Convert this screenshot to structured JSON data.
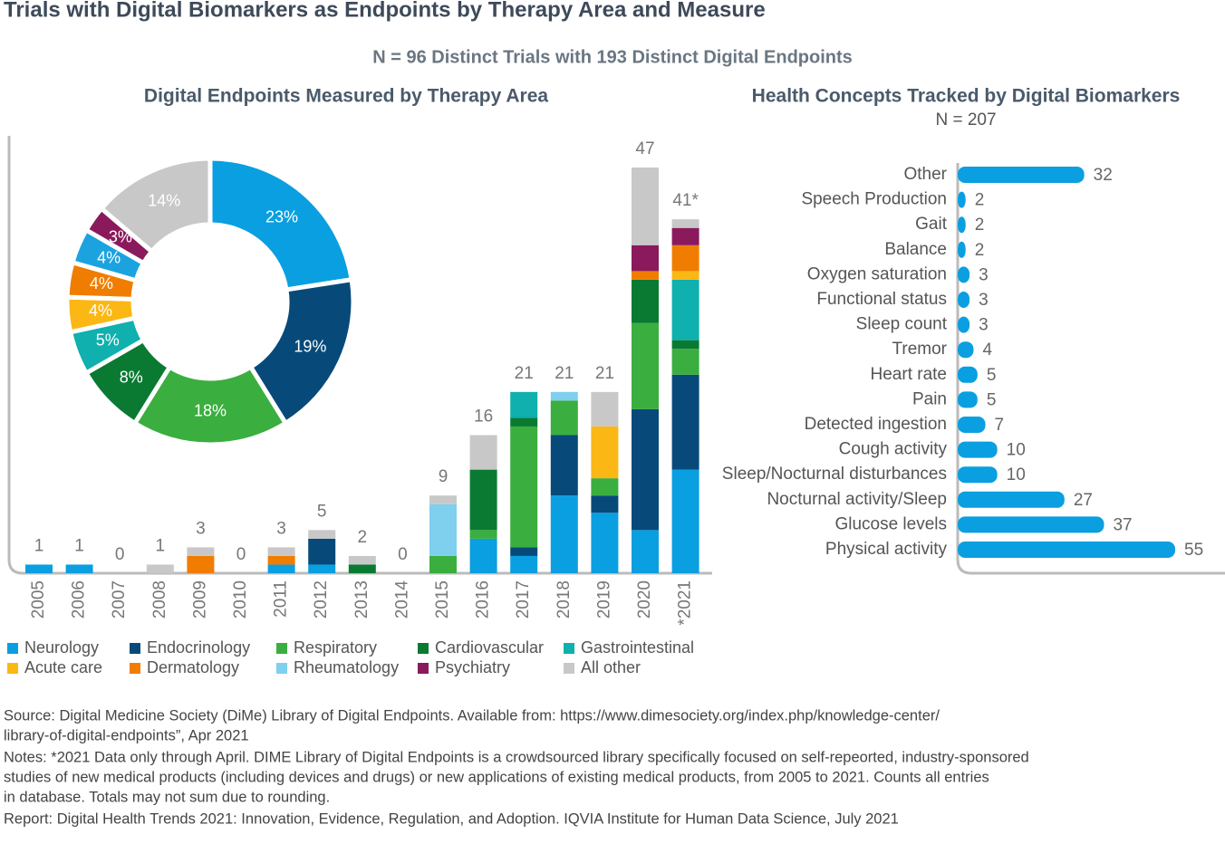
{
  "title": "Trials with Digital Biomarkers as Endpoints by Therapy Area and Measure",
  "subtitle": "N = 96 Distinct Trials with 193 Distinct Digital Endpoints",
  "footnotes": [
    "Source: Digital Medicine Society (DiMe) Library of Digital Endpoints. Available from: https://www.dimesociety.org/index.php/knowledge-center/",
    "library-of-digital-endpoints”, Apr 2021",
    "Notes: *2021 Data only through April. DIME Library of Digital Endpoints is a crowdsourced library specifically focused on self-repeorted, industry-sponsored",
    "studies of new medical products (including devices and drugs) or new applications of existing medical products, from 2005 to 2021. Counts all entries",
    "in database. Totals may not sum due to rounding.",
    "Report: Digital Health Trends 2021: Innovation, Evidence, Regulation, and Adoption. IQVIA Institute for Human Data Science, July 2021"
  ],
  "chart_data": [
    {
      "type": "donut",
      "title": "Digital Endpoints Measured by Therapy Area",
      "values": [
        23,
        19,
        18,
        8,
        5,
        4,
        4,
        4,
        3,
        14
      ],
      "value_labels": [
        "23%",
        "19%",
        "18%",
        "8%",
        "5%",
        "4%",
        "4%",
        "4%",
        "3%",
        "14%"
      ],
      "colors": [
        "#0a9fe0",
        "#074a7a",
        "#3aae3f",
        "#0a7a32",
        "#0fb0ad",
        "#fbb714",
        "#f07d00",
        "#1ba3e0",
        "#8a1a5c",
        "#c8c8c8"
      ]
    },
    {
      "type": "stacked-bar",
      "categories": [
        "2005",
        "2006",
        "2007",
        "2008",
        "2009",
        "2010",
        "2011",
        "2012",
        "2013",
        "2014",
        "2015",
        "2016",
        "2017",
        "2018",
        "2019",
        "2020",
        "*2021"
      ],
      "totals": [
        1,
        1,
        0,
        1,
        3,
        0,
        3,
        5,
        2,
        0,
        9,
        16,
        21,
        21,
        21,
        47,
        41
      ],
      "total_labels": [
        "1",
        "1",
        "0",
        "1",
        "3",
        "0",
        "3",
        "5",
        "2",
        "0",
        "9",
        "16",
        "21",
        "21",
        "21",
        "47",
        "41*"
      ],
      "series": [
        {
          "name": "Neurology",
          "color": "#0a9fe0",
          "values": [
            1,
            1,
            0,
            0,
            0,
            0,
            1,
            1,
            0,
            0,
            0,
            4,
            2,
            9,
            7,
            5,
            12
          ]
        },
        {
          "name": "Endocrinology",
          "color": "#074a7a",
          "values": [
            0,
            0,
            0,
            0,
            0,
            0,
            0,
            3,
            0,
            0,
            0,
            0,
            1,
            7,
            2,
            14,
            11
          ]
        },
        {
          "name": "Respiratory",
          "color": "#3aae3f",
          "values": [
            0,
            0,
            0,
            0,
            0,
            0,
            0,
            0,
            0,
            0,
            2,
            1,
            14,
            4,
            2,
            10,
            3
          ]
        },
        {
          "name": "Cardiovascular",
          "color": "#0a7a32",
          "values": [
            0,
            0,
            0,
            0,
            0,
            0,
            0,
            0,
            1,
            0,
            0,
            7,
            1,
            0,
            0,
            5,
            1
          ]
        },
        {
          "name": "Gastrointestinal",
          "color": "#0fb0ad",
          "values": [
            0,
            0,
            0,
            0,
            0,
            0,
            0,
            0,
            0,
            0,
            0,
            0,
            3,
            0,
            0,
            0,
            7
          ]
        },
        {
          "name": "Acute care",
          "color": "#fbb714",
          "values": [
            0,
            0,
            0,
            0,
            0,
            0,
            0,
            0,
            0,
            0,
            0,
            0,
            0,
            0,
            6,
            0,
            1
          ]
        },
        {
          "name": "Dermatology",
          "color": "#f07d00",
          "values": [
            0,
            0,
            0,
            0,
            2,
            0,
            1,
            0,
            0,
            0,
            0,
            0,
            0,
            0,
            0,
            1,
            3
          ]
        },
        {
          "name": "Rheumatology",
          "color": "#7fcfef",
          "values": [
            0,
            0,
            0,
            0,
            0,
            0,
            0,
            0,
            0,
            0,
            6,
            0,
            0,
            1,
            0,
            0,
            0
          ]
        },
        {
          "name": "Psychiatry",
          "color": "#8a1a5c",
          "values": [
            0,
            0,
            0,
            0,
            0,
            0,
            0,
            0,
            0,
            0,
            0,
            0,
            0,
            0,
            0,
            3,
            2
          ]
        },
        {
          "name": "All other",
          "color": "#c8c8c8",
          "values": [
            0,
            0,
            0,
            1,
            1,
            0,
            1,
            1,
            1,
            0,
            1,
            4,
            0,
            0,
            4,
            9,
            1
          ]
        }
      ]
    },
    {
      "type": "hbar",
      "title": "Health Concepts Tracked by Digital Biomarkers",
      "subtitle": "N = 207",
      "color": "#0a9fe0",
      "categories": [
        "Other",
        "Speech Production",
        "Gait",
        "Balance",
        "Oxygen saturation",
        "Functional status",
        "Sleep count",
        "Tremor",
        "Heart rate",
        "Pain",
        "Detected ingestion",
        "Cough activity",
        "Sleep/Nocturnal disturbances",
        "Nocturnal activity/Sleep",
        "Glucose levels",
        "Physical activity"
      ],
      "values": [
        32,
        2,
        2,
        2,
        3,
        3,
        3,
        4,
        5,
        5,
        7,
        10,
        10,
        27,
        37,
        55
      ]
    }
  ]
}
